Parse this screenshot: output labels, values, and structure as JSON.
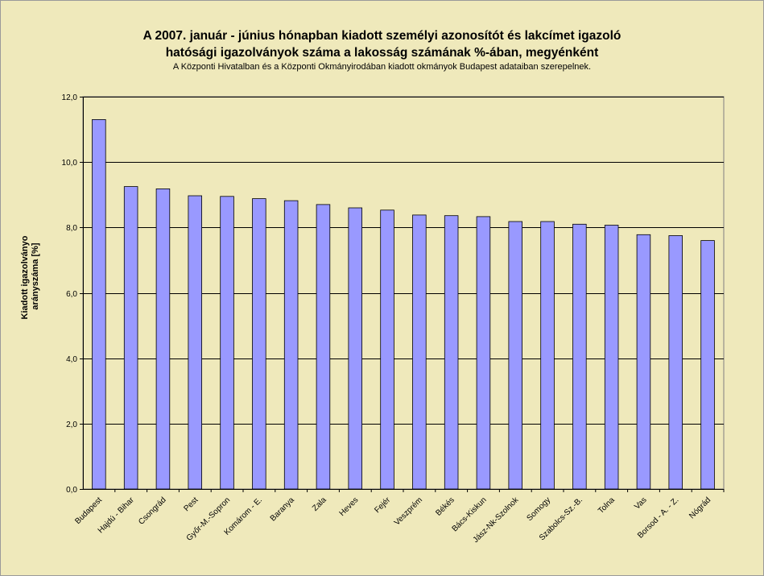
{
  "chart_data": {
    "type": "bar",
    "title_lines": [
      "A 2007. január - június hónapban kiadott személyi azonosítót és lakcímet igazoló",
      "hatósági igazolványok száma a lakosság  számának %-ában, megyénként"
    ],
    "subtitle": "A Központi Hivatalban és a Központi Okmányirodában kiadott okmányok Budapest adataiban szerepelnek.",
    "ylabel_lines": [
      "Kiadott igazolványo",
      "arányszáma [%]"
    ],
    "xlabel": "",
    "ylim": [
      0,
      12
    ],
    "yticks": [
      "0,0",
      "2,0",
      "4,0",
      "6,0",
      "8,0",
      "10,0",
      "12,0"
    ],
    "grid": "horizontal",
    "categories": [
      "Budapest",
      "Hajdú - Bihar",
      "Csongrád",
      "Pest",
      "Győr-M.-Sopron",
      "Komárom - E.",
      "Baranya",
      "Zala",
      "Heves",
      "Fejér",
      "Veszprém",
      "Békés",
      "Bács-Kiskun",
      "Jász-Nk-Szolnok",
      "Somogy",
      "Szabolcs-Sz.-B.",
      "Tolna",
      "Vas",
      "Borsod - A. - Z.",
      "Nógrád"
    ],
    "values": [
      11.3,
      9.25,
      9.18,
      8.97,
      8.95,
      8.88,
      8.82,
      8.7,
      8.6,
      8.53,
      8.38,
      8.36,
      8.33,
      8.18,
      8.18,
      8.1,
      8.07,
      7.78,
      7.75,
      7.6
    ],
    "colors": {
      "bar": "#9999ff",
      "bar_edge": "#000000",
      "plot_bg": "#efe9bb",
      "grid": "#000000"
    }
  }
}
